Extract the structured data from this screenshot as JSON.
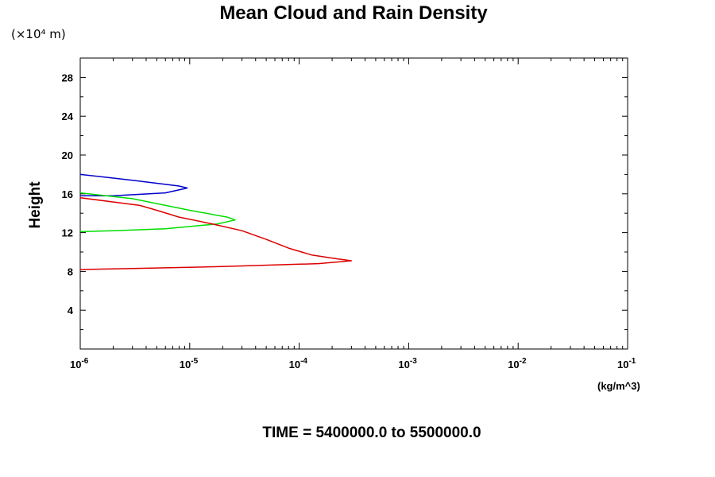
{
  "chart_data": {
    "type": "line",
    "title": "Mean Cloud and Rain Density",
    "ylabel": "Height",
    "y_scale_note": "(×10⁴ m)",
    "x_unit_label": "(kg/m^3)",
    "footer": "TIME = 5400000.0 to 5500000.0",
    "x_scale": "log",
    "xlim": [
      1e-06,
      0.1
    ],
    "ylim": [
      0,
      30
    ],
    "y_ticks": [
      "4",
      "8",
      "12",
      "16",
      "20",
      "24",
      "28"
    ],
    "x_ticks": [
      {
        "base": "10",
        "exp": "-6"
      },
      {
        "base": "10",
        "exp": "-5"
      },
      {
        "base": "10",
        "exp": "-4"
      },
      {
        "base": "10",
        "exp": "-3"
      },
      {
        "base": "10",
        "exp": "-2"
      },
      {
        "base": "10",
        "exp": "-1"
      }
    ],
    "grid": false,
    "series": [
      {
        "color": "#0000cc",
        "x": [
          1e-06,
          3e-06,
          8e-06,
          9.5e-06,
          6e-06,
          2e-06,
          1e-06
        ],
        "y": [
          18.0,
          17.4,
          16.8,
          16.6,
          16.1,
          15.8,
          15.8
        ]
      },
      {
        "color": "#00dd00",
        "x": [
          1e-06,
          3e-06,
          1e-05,
          2.2e-05,
          2.6e-05,
          1.8e-05,
          6e-06,
          2e-06,
          1e-06
        ],
        "y": [
          16.1,
          15.5,
          14.3,
          13.6,
          13.3,
          12.9,
          12.4,
          12.2,
          12.1
        ]
      },
      {
        "color": "#dd0000",
        "x": [
          1e-06,
          3.5e-06,
          5e-06,
          8e-06,
          1.6e-05,
          3e-05,
          5e-05,
          8e-05,
          0.00013,
          0.00022,
          0.0003,
          0.00015,
          2e-05,
          3e-06,
          1e-06
        ],
        "y": [
          15.6,
          14.8,
          14.3,
          13.6,
          12.9,
          12.2,
          11.3,
          10.4,
          9.7,
          9.3,
          9.1,
          8.8,
          8.5,
          8.3,
          8.2
        ]
      }
    ]
  }
}
